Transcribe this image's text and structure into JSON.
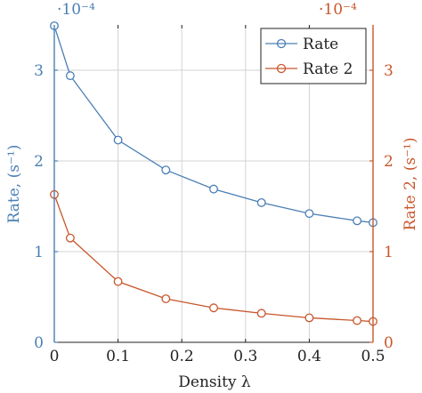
{
  "chart_data": {
    "type": "line",
    "xlabel": "Density λ",
    "xlim": [
      0,
      0.5
    ],
    "x_ticks": [
      0,
      0.1,
      0.2,
      0.3,
      0.4,
      0.5
    ],
    "x_tick_labels": [
      "0",
      "0.1",
      "0.2",
      "0.3",
      "0.4",
      "0.5"
    ],
    "grid": true,
    "legend_position": "top-right",
    "left_axis": {
      "label": "Rate, (s⁻¹)",
      "scale_label": "·10⁻⁴",
      "ylim": [
        0,
        3.5
      ],
      "ticks": [
        0,
        1,
        2,
        3
      ],
      "tick_labels": [
        "0",
        "1",
        "2",
        "3"
      ],
      "color": "#4a7fb5"
    },
    "right_axis": {
      "label": "Rate 2, (s⁻¹)",
      "scale_label": "·10⁻⁴",
      "ylim": [
        0,
        3.5
      ],
      "ticks": [
        0,
        1,
        2,
        3
      ],
      "tick_labels": [
        "0",
        "1",
        "2",
        "3"
      ],
      "color": "#c8562b"
    },
    "series": [
      {
        "name": "Rate",
        "axis": "left",
        "color": "#4a7fb5",
        "marker": "circle",
        "x": [
          0,
          0.025,
          0.1,
          0.175,
          0.25,
          0.325,
          0.4,
          0.475,
          0.5
        ],
        "y": [
          3.49,
          2.94,
          2.23,
          1.9,
          1.69,
          1.54,
          1.42,
          1.34,
          1.32
        ]
      },
      {
        "name": "Rate 2",
        "axis": "right",
        "color": "#c8562b",
        "marker": "circle",
        "x": [
          0,
          0.025,
          0.1,
          0.175,
          0.25,
          0.325,
          0.4,
          0.475,
          0.5
        ],
        "y": [
          1.63,
          1.15,
          0.67,
          0.48,
          0.38,
          0.32,
          0.27,
          0.24,
          0.23
        ]
      }
    ]
  }
}
